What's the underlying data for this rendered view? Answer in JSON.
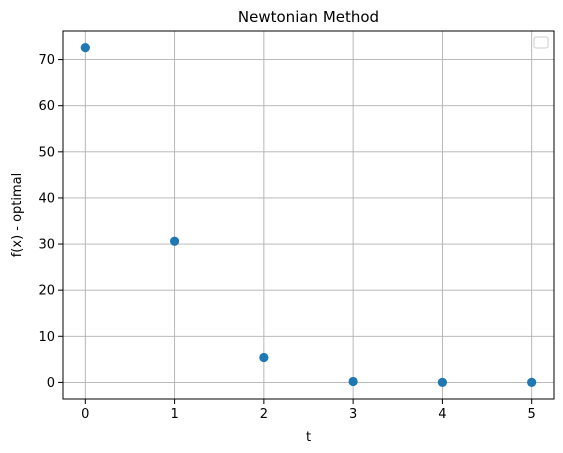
{
  "chart_data": {
    "type": "scatter",
    "title": "Newtonian Method",
    "xlabel": "t",
    "ylabel": "f(x) - optimal",
    "x": [
      0,
      1,
      2,
      3,
      4,
      5
    ],
    "y": [
      72.6,
      30.6,
      5.4,
      0.2,
      0.0,
      0.0
    ],
    "xlim": [
      -0.25,
      5.25
    ],
    "ylim": [
      -3.6,
      76.2
    ],
    "xticks": [
      0,
      1,
      2,
      3,
      4,
      5
    ],
    "yticks": [
      0,
      10,
      20,
      30,
      40,
      50,
      60,
      70
    ],
    "grid": true,
    "legend": "top-right",
    "legend_entries": [],
    "colors": {
      "point": "#1f77b4",
      "grid": "#b0b0b0",
      "axes": "#000000"
    }
  }
}
